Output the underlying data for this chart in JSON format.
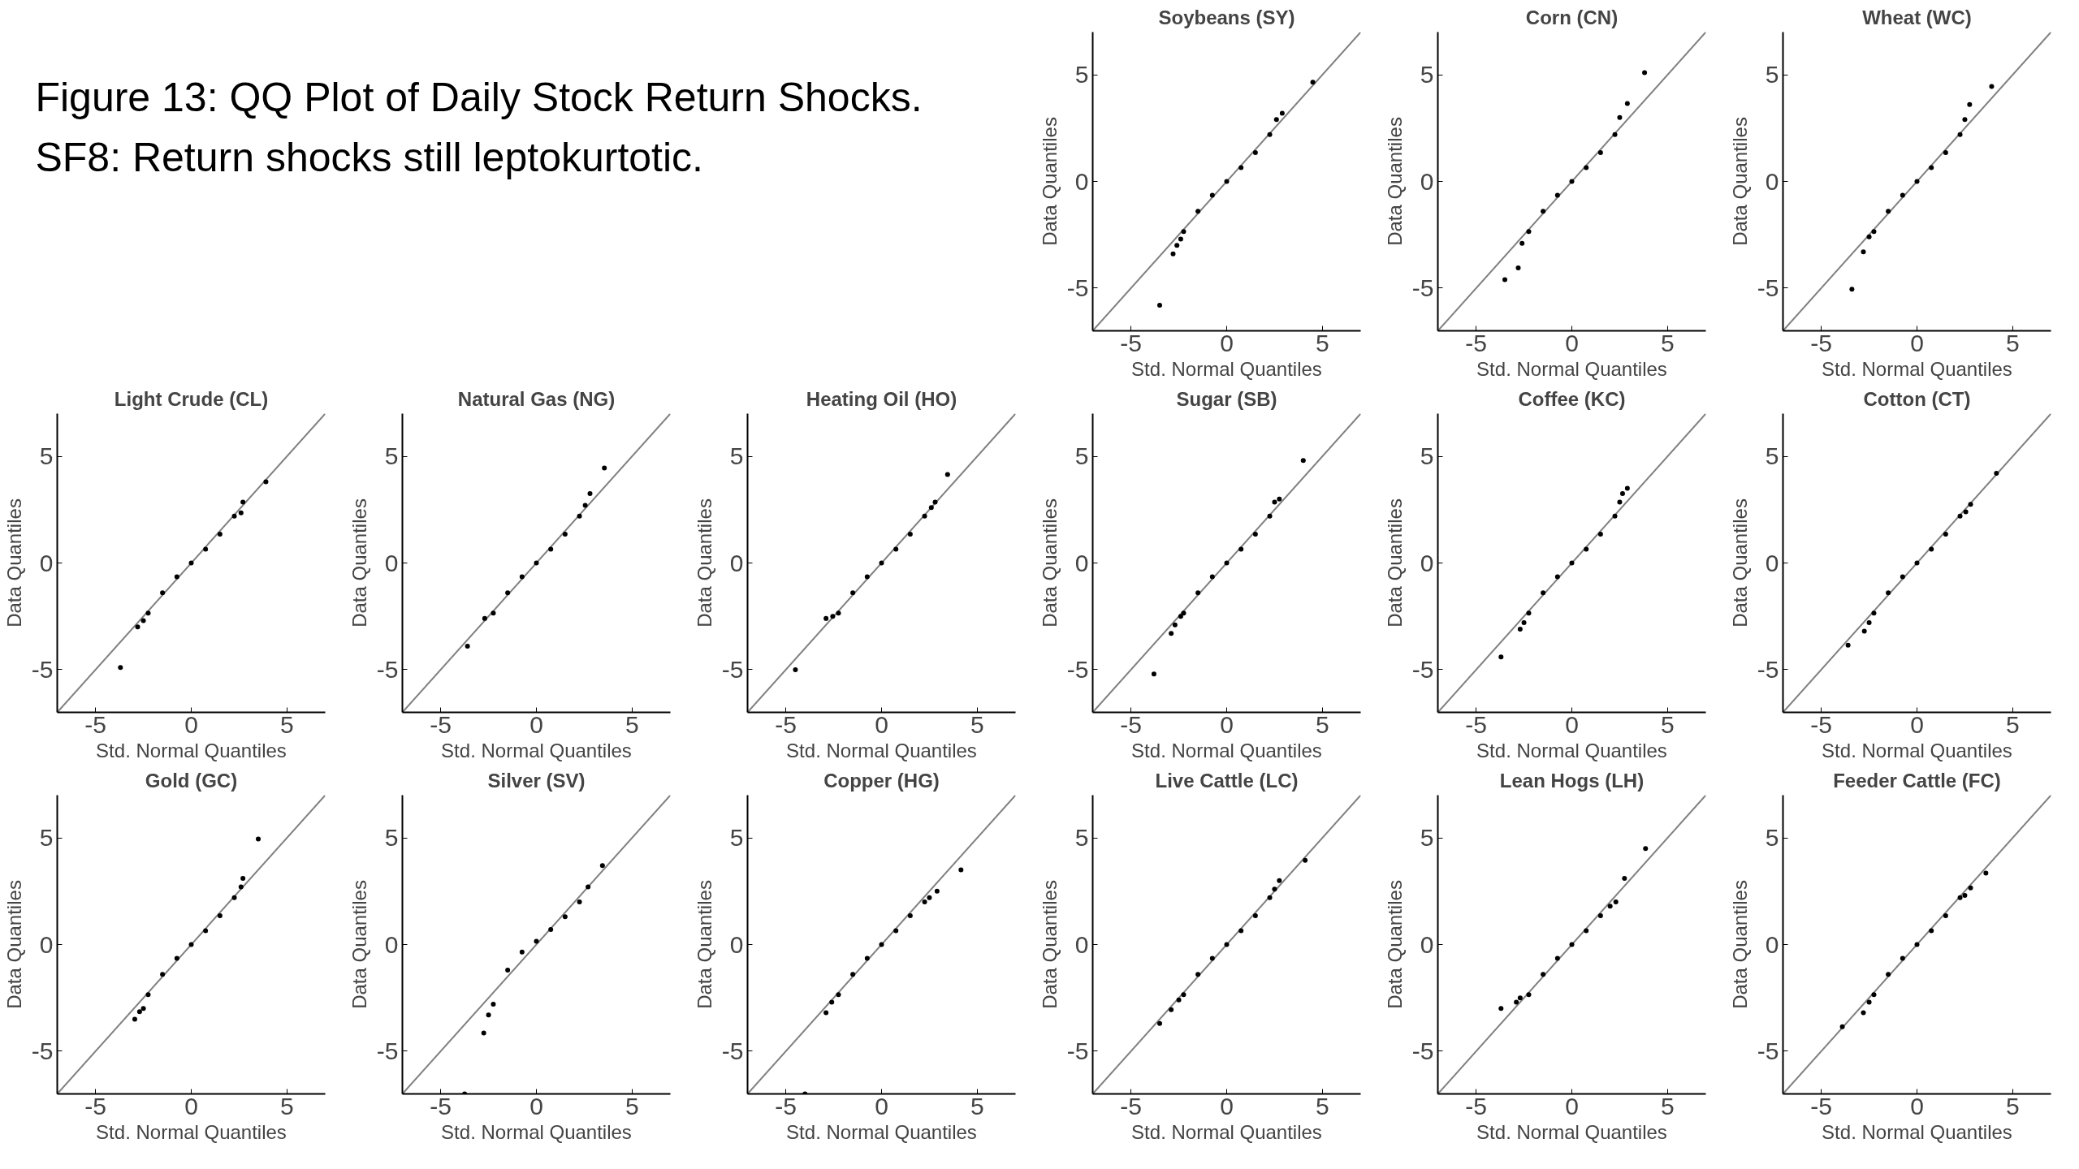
{
  "chart_data": [
    {
      "type": "other",
      "title": "Figure 13: QQ Plot of Daily Stock Return Shocks.",
      "subtitle": "SF8: Return shocks still leptokurtotic."
    },
    {
      "type": "scatter",
      "title": "Soybeans (SY)",
      "xlabel": "Std. Normal Quantiles",
      "ylabel": "Data Quantiles",
      "xlim": [
        -7,
        7
      ],
      "ylim": [
        -7,
        7
      ],
      "xticks": [
        -5,
        0,
        5
      ],
      "yticks": [
        -5,
        0,
        5
      ],
      "series": [
        {
          "type": "scatter",
          "color": "#000000",
          "x": [
            -3.5,
            -2.8,
            -2.6,
            -2.4,
            -2.25,
            -1.5,
            -0.75,
            0,
            0.75,
            1.5,
            2.25,
            2.6,
            2.9,
            4.5
          ],
          "values": [
            -5.8,
            -3.4,
            -3.0,
            -2.7,
            -2.35,
            -1.4,
            -0.65,
            0,
            0.65,
            1.35,
            2.2,
            2.9,
            3.2,
            4.65
          ]
        },
        {
          "type": "line",
          "color": "#808080",
          "x": [
            -7,
            7
          ],
          "values": [
            -7,
            7
          ]
        }
      ]
    },
    {
      "type": "scatter",
      "title": "Corn (CN)",
      "xlabel": "Std. Normal Quantiles",
      "ylabel": "Data Quantiles",
      "xlim": [
        -7,
        7
      ],
      "ylim": [
        -7,
        7
      ],
      "xticks": [
        -5,
        0,
        5
      ],
      "yticks": [
        -5,
        0,
        5
      ],
      "series": [
        {
          "type": "scatter",
          "color": "#000000",
          "x": [
            -3.5,
            -2.8,
            -2.6,
            -2.25,
            -1.5,
            -0.75,
            0,
            0.75,
            1.5,
            2.25,
            2.5,
            2.9,
            3.8
          ],
          "values": [
            -4.6,
            -4.05,
            -2.9,
            -2.35,
            -1.4,
            -0.65,
            0,
            0.65,
            1.35,
            2.2,
            3.0,
            3.65,
            5.1
          ]
        },
        {
          "type": "line",
          "color": "#808080",
          "x": [
            -7,
            7
          ],
          "values": [
            -7,
            7
          ]
        }
      ]
    },
    {
      "type": "scatter",
      "title": "Wheat (WC)",
      "xlabel": "Std. Normal Quantiles",
      "ylabel": "Data Quantiles",
      "xlim": [
        -7,
        7
      ],
      "ylim": [
        -7,
        7
      ],
      "xticks": [
        -5,
        0,
        5
      ],
      "yticks": [
        -5,
        0,
        5
      ],
      "series": [
        {
          "type": "scatter",
          "color": "#000000",
          "x": [
            -3.4,
            -2.8,
            -2.5,
            -2.25,
            -1.5,
            -0.75,
            0,
            0.75,
            1.5,
            2.25,
            2.5,
            2.75,
            3.9
          ],
          "values": [
            -5.05,
            -3.3,
            -2.6,
            -2.35,
            -1.4,
            -0.65,
            0,
            0.65,
            1.35,
            2.2,
            2.9,
            3.6,
            4.45
          ]
        },
        {
          "type": "line",
          "color": "#808080",
          "x": [
            -7,
            7
          ],
          "values": [
            -7,
            7
          ]
        }
      ]
    },
    {
      "type": "scatter",
      "title": "Light Crude (CL)",
      "xlabel": "Std. Normal Quantiles",
      "ylabel": "Data Quantiles",
      "xlim": [
        -7,
        7
      ],
      "ylim": [
        -7,
        7
      ],
      "xticks": [
        -5,
        0,
        5
      ],
      "yticks": [
        -5,
        0,
        5
      ],
      "series": [
        {
          "type": "scatter",
          "color": "#000000",
          "x": [
            -3.7,
            -2.8,
            -2.5,
            -2.25,
            -1.5,
            -0.75,
            0,
            0.75,
            1.5,
            2.25,
            2.6,
            2.7,
            3.9
          ],
          "values": [
            -4.9,
            -3.0,
            -2.7,
            -2.35,
            -1.4,
            -0.65,
            0,
            0.65,
            1.35,
            2.2,
            2.35,
            2.85,
            3.8
          ]
        },
        {
          "type": "line",
          "color": "#808080",
          "x": [
            -7,
            7
          ],
          "values": [
            -7,
            7
          ]
        }
      ]
    },
    {
      "type": "scatter",
      "title": "Natural Gas (NG)",
      "xlabel": "Std. Normal Quantiles",
      "ylabel": "Data Quantiles",
      "xlim": [
        -7,
        7
      ],
      "ylim": [
        -7,
        7
      ],
      "xticks": [
        -5,
        0,
        5
      ],
      "yticks": [
        -5,
        0,
        5
      ],
      "series": [
        {
          "type": "scatter",
          "color": "#000000",
          "x": [
            -3.6,
            -2.7,
            -2.25,
            -1.5,
            -0.75,
            0,
            0.75,
            1.5,
            2.25,
            2.55,
            2.8,
            3.55
          ],
          "values": [
            -3.9,
            -2.6,
            -2.35,
            -1.4,
            -0.65,
            0,
            0.65,
            1.35,
            2.2,
            2.7,
            3.25,
            4.45
          ]
        },
        {
          "type": "line",
          "color": "#808080",
          "x": [
            -7,
            7
          ],
          "values": [
            -7,
            7
          ]
        }
      ]
    },
    {
      "type": "scatter",
      "title": "Heating Oil (HO)",
      "xlabel": "Std. Normal Quantiles",
      "ylabel": "Data Quantiles",
      "xlim": [
        -7,
        7
      ],
      "ylim": [
        -7,
        7
      ],
      "xticks": [
        -5,
        0,
        5
      ],
      "yticks": [
        -5,
        0,
        5
      ],
      "series": [
        {
          "type": "scatter",
          "color": "#000000",
          "x": [
            -4.5,
            -2.9,
            -2.55,
            -2.25,
            -1.5,
            -0.75,
            0,
            0.75,
            1.5,
            2.25,
            2.6,
            2.8,
            3.45
          ],
          "values": [
            -5.0,
            -2.6,
            -2.5,
            -2.35,
            -1.4,
            -0.65,
            0,
            0.65,
            1.35,
            2.2,
            2.6,
            2.85,
            4.15
          ]
        },
        {
          "type": "line",
          "color": "#808080",
          "x": [
            -7,
            7
          ],
          "values": [
            -7,
            7
          ]
        }
      ]
    },
    {
      "type": "scatter",
      "title": "Sugar (SB)",
      "xlabel": "Std. Normal Quantiles",
      "ylabel": "Data Quantiles",
      "xlim": [
        -7,
        7
      ],
      "ylim": [
        -7,
        7
      ],
      "xticks": [
        -5,
        0,
        5
      ],
      "yticks": [
        -5,
        0,
        5
      ],
      "series": [
        {
          "type": "scatter",
          "color": "#000000",
          "x": [
            -3.8,
            -2.9,
            -2.7,
            -2.4,
            -2.25,
            -1.5,
            -0.75,
            0,
            0.75,
            1.5,
            2.25,
            2.5,
            2.75,
            4.0
          ],
          "values": [
            -5.2,
            -3.3,
            -2.9,
            -2.5,
            -2.35,
            -1.4,
            -0.65,
            0,
            0.65,
            1.35,
            2.2,
            2.85,
            3.0,
            4.8
          ]
        },
        {
          "type": "line",
          "color": "#808080",
          "x": [
            -7,
            7
          ],
          "values": [
            -7,
            7
          ]
        }
      ]
    },
    {
      "type": "scatter",
      "title": "Coffee (KC)",
      "xlabel": "Std. Normal Quantiles",
      "ylabel": "Data Quantiles",
      "xlim": [
        -7,
        7
      ],
      "ylim": [
        -7,
        7
      ],
      "xticks": [
        -5,
        0,
        5
      ],
      "yticks": [
        -5,
        0,
        5
      ],
      "series": [
        {
          "type": "scatter",
          "color": "#000000",
          "x": [
            -3.7,
            -2.7,
            -2.5,
            -2.25,
            -1.5,
            -0.75,
            0,
            0.75,
            1.5,
            2.25,
            2.5,
            2.65,
            2.9
          ],
          "values": [
            -4.4,
            -3.1,
            -2.8,
            -2.35,
            -1.4,
            -0.65,
            0,
            0.65,
            1.35,
            2.2,
            2.85,
            3.25,
            3.5
          ]
        },
        {
          "type": "line",
          "color": "#808080",
          "x": [
            -7,
            7
          ],
          "values": [
            -7,
            7
          ]
        }
      ]
    },
    {
      "type": "scatter",
      "title": "Cotton (CT)",
      "xlabel": "Std. Normal Quantiles",
      "ylabel": "Data Quantiles",
      "xlim": [
        -7,
        7
      ],
      "ylim": [
        -7,
        7
      ],
      "xticks": [
        -5,
        0,
        5
      ],
      "yticks": [
        -5,
        0,
        5
      ],
      "series": [
        {
          "type": "scatter",
          "color": "#000000",
          "x": [
            -3.6,
            -2.75,
            -2.5,
            -2.25,
            -1.5,
            -0.75,
            0,
            0.75,
            1.5,
            2.25,
            2.55,
            2.8,
            4.15
          ],
          "values": [
            -3.85,
            -3.2,
            -2.8,
            -2.35,
            -1.4,
            -0.65,
            0,
            0.65,
            1.35,
            2.2,
            2.4,
            2.75,
            4.2
          ]
        },
        {
          "type": "line",
          "color": "#808080",
          "x": [
            -7,
            7
          ],
          "values": [
            -7,
            7
          ]
        }
      ]
    },
    {
      "type": "scatter",
      "title": "Gold (GC)",
      "xlabel": "Std. Normal Quantiles",
      "ylabel": "Data Quantiles",
      "xlim": [
        -7,
        7
      ],
      "ylim": [
        -7,
        7
      ],
      "xticks": [
        -5,
        0,
        5
      ],
      "yticks": [
        -5,
        0,
        5
      ],
      "series": [
        {
          "type": "scatter",
          "color": "#000000",
          "x": [
            -2.95,
            -2.7,
            -2.5,
            -2.25,
            -1.5,
            -0.75,
            0,
            0.75,
            1.5,
            2.25,
            2.6,
            2.7,
            3.5
          ],
          "values": [
            -3.5,
            -3.15,
            -3.0,
            -2.35,
            -1.4,
            -0.65,
            0,
            0.65,
            1.35,
            2.2,
            2.7,
            3.1,
            4.95
          ]
        },
        {
          "type": "line",
          "color": "#808080",
          "x": [
            -7,
            7
          ],
          "values": [
            -7,
            7
          ]
        }
      ]
    },
    {
      "type": "scatter",
      "title": "Silver (SV)",
      "xlabel": "Std. Normal Quantiles",
      "ylabel": "Data Quantiles",
      "xlim": [
        -7,
        7
      ],
      "ylim": [
        -7,
        7
      ],
      "xticks": [
        -5,
        0,
        5
      ],
      "yticks": [
        -5,
        0,
        5
      ],
      "series": [
        {
          "type": "scatter",
          "color": "#000000",
          "x": [
            -3.75,
            -2.75,
            -2.5,
            -2.25,
            -1.5,
            -0.75,
            0,
            0.75,
            1.5,
            2.25,
            2.7,
            3.45
          ],
          "values": [
            -7.0,
            -4.15,
            -3.3,
            -2.8,
            -1.2,
            -0.35,
            0.15,
            0.7,
            1.3,
            2.0,
            2.7,
            3.7
          ]
        },
        {
          "type": "line",
          "color": "#808080",
          "x": [
            -7,
            7
          ],
          "values": [
            -7,
            7
          ]
        }
      ]
    },
    {
      "type": "scatter",
      "title": "Copper (HG)",
      "xlabel": "Std. Normal Quantiles",
      "ylabel": "Data Quantiles",
      "xlim": [
        -7,
        7
      ],
      "ylim": [
        -7,
        7
      ],
      "xticks": [
        -5,
        0,
        5
      ],
      "yticks": [
        -5,
        0,
        5
      ],
      "series": [
        {
          "type": "scatter",
          "color": "#000000",
          "x": [
            -4.0,
            -2.9,
            -2.6,
            -2.25,
            -1.5,
            -0.75,
            0,
            0.75,
            1.5,
            2.25,
            2.5,
            2.9,
            4.15
          ],
          "values": [
            -7.0,
            -3.2,
            -2.7,
            -2.35,
            -1.4,
            -0.65,
            0,
            0.65,
            1.35,
            2.0,
            2.2,
            2.5,
            3.5
          ]
        },
        {
          "type": "line",
          "color": "#808080",
          "x": [
            -7,
            7
          ],
          "values": [
            -7,
            7
          ]
        }
      ]
    },
    {
      "type": "scatter",
      "title": "Live Cattle (LC)",
      "xlabel": "Std. Normal Quantiles",
      "ylabel": "Data Quantiles",
      "xlim": [
        -7,
        7
      ],
      "ylim": [
        -7,
        7
      ],
      "xticks": [
        -5,
        0,
        5
      ],
      "yticks": [
        -5,
        0,
        5
      ],
      "series": [
        {
          "type": "scatter",
          "color": "#000000",
          "x": [
            -3.5,
            -2.9,
            -2.5,
            -2.25,
            -1.5,
            -0.75,
            0,
            0.75,
            1.5,
            2.25,
            2.5,
            2.75,
            4.1
          ],
          "values": [
            -3.7,
            -3.05,
            -2.6,
            -2.35,
            -1.4,
            -0.65,
            0,
            0.65,
            1.35,
            2.2,
            2.6,
            3.0,
            3.95
          ]
        },
        {
          "type": "line",
          "color": "#808080",
          "x": [
            -7,
            7
          ],
          "values": [
            -7,
            7
          ]
        }
      ]
    },
    {
      "type": "scatter",
      "title": "Lean Hogs (LH)",
      "xlabel": "Std. Normal Quantiles",
      "ylabel": "Data Quantiles",
      "xlim": [
        -7,
        7
      ],
      "ylim": [
        -7,
        7
      ],
      "xticks": [
        -5,
        0,
        5
      ],
      "yticks": [
        -5,
        0,
        5
      ],
      "series": [
        {
          "type": "scatter",
          "color": "#000000",
          "x": [
            -3.7,
            -2.9,
            -2.7,
            -2.25,
            -1.5,
            -0.75,
            0,
            0.75,
            1.5,
            2.0,
            2.3,
            2.75,
            3.85
          ],
          "values": [
            -3.0,
            -2.7,
            -2.5,
            -2.35,
            -1.4,
            -0.65,
            0,
            0.65,
            1.35,
            1.8,
            2.0,
            3.1,
            4.5
          ]
        },
        {
          "type": "line",
          "color": "#808080",
          "x": [
            -7,
            7
          ],
          "values": [
            -7,
            7
          ]
        }
      ]
    },
    {
      "type": "scatter",
      "title": "Feeder Cattle (FC)",
      "xlabel": "Std. Normal Quantiles",
      "ylabel": "Data Quantiles",
      "xlim": [
        -7,
        7
      ],
      "ylim": [
        -7,
        7
      ],
      "xticks": [
        -5,
        0,
        5
      ],
      "yticks": [
        -5,
        0,
        5
      ],
      "series": [
        {
          "type": "scatter",
          "color": "#000000",
          "x": [
            -3.9,
            -2.8,
            -2.5,
            -2.25,
            -1.5,
            -0.75,
            0,
            0.75,
            1.5,
            2.25,
            2.5,
            2.8,
            3.6
          ],
          "values": [
            -3.85,
            -3.2,
            -2.7,
            -2.35,
            -1.4,
            -0.65,
            0,
            0.65,
            1.35,
            2.2,
            2.3,
            2.65,
            3.35
          ]
        },
        {
          "type": "line",
          "color": "#808080",
          "x": [
            -7,
            7
          ],
          "values": [
            -7,
            7
          ]
        }
      ]
    }
  ]
}
